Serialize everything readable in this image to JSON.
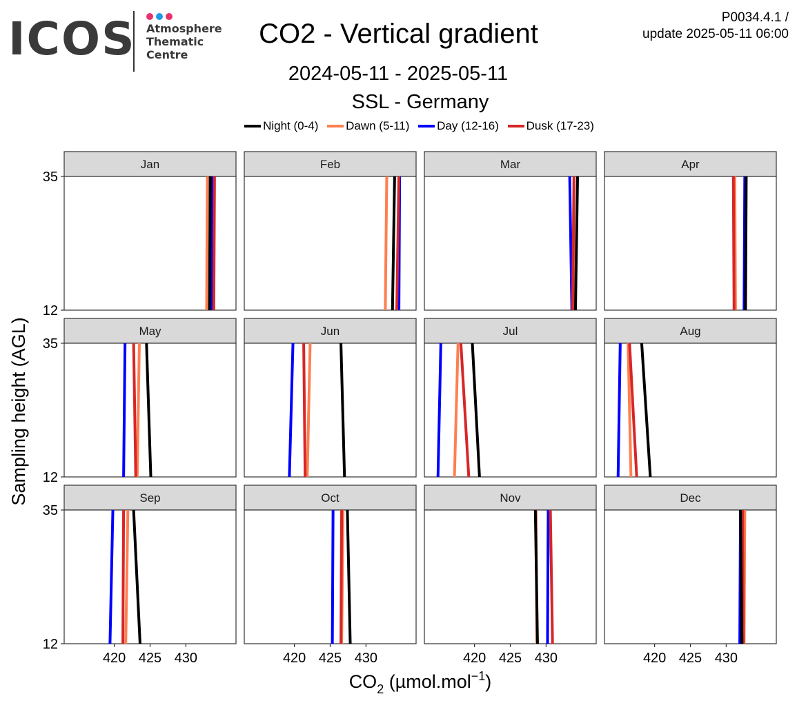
{
  "logo": {
    "wordmark": "ICOS",
    "line1": "Atmosphere",
    "line2": "Thematic",
    "line3": "Centre",
    "dot_colors": [
      "#e7336b",
      "#1e9be6",
      "#e7336b"
    ]
  },
  "header": {
    "title": "CO2 - Vertical gradient",
    "period": "2024-05-11 - 2025-05-11",
    "station": "SSL - Germany",
    "product_id": "P0034.4.1 /",
    "update": "update  2025-05-11 06:00"
  },
  "chart_data": {
    "type": "line",
    "layout": "facet-grid 3 rows x 4 columns, one panel per month",
    "ylabel": "Sampling height (AGL)",
    "xlabel_main": "CO",
    "xlabel_sub": "2",
    "xlabel_unit_pre": " (µmol.mol",
    "xlabel_unit_sup": "−1",
    "xlabel_unit_post": ")",
    "heights": [
      12,
      35
    ],
    "xlim": [
      413,
      437
    ],
    "ylim": [
      12,
      35
    ],
    "xticks": [
      420,
      425,
      430
    ],
    "yticks": [
      12,
      35
    ],
    "grid": false,
    "legend_position": "top",
    "series": [
      {
        "name": "Night (0-4)",
        "color": "#000000"
      },
      {
        "name": "Dawn (5-11)",
        "color": "#ff7f50"
      },
      {
        "name": "Day (12-16)",
        "color": "#0000ff"
      },
      {
        "name": "Dusk (17-23)",
        "color": "#d62728"
      }
    ],
    "panels": [
      {
        "month": "Jan",
        "night": [
          433.3,
          433.4
        ],
        "dawn": [
          432.9,
          433.0
        ],
        "day": [
          433.6,
          433.7
        ],
        "dusk": [
          433.9,
          434.0
        ]
      },
      {
        "month": "Feb",
        "night": [
          433.7,
          434.0
        ],
        "dawn": [
          432.7,
          432.9
        ],
        "day": [
          434.6,
          434.7
        ],
        "dusk": [
          434.3,
          434.6
        ]
      },
      {
        "month": "Mar",
        "night": [
          434.1,
          434.4
        ],
        "dawn": [
          433.8,
          433.9
        ],
        "day": [
          433.6,
          433.3
        ],
        "dusk": [
          433.7,
          433.9
        ]
      },
      {
        "month": "Apr",
        "night": [
          432.7,
          432.8
        ],
        "dawn": [
          431.3,
          431.2
        ],
        "day": [
          432.5,
          432.6
        ],
        "dusk": [
          431.1,
          431.0
        ]
      },
      {
        "month": "May",
        "night": [
          425.1,
          424.5
        ],
        "dawn": [
          423.2,
          423.5
        ],
        "day": [
          421.3,
          421.5
        ],
        "dusk": [
          423.0,
          422.7
        ]
      },
      {
        "month": "Jun",
        "night": [
          427.0,
          426.5
        ],
        "dawn": [
          421.8,
          422.2
        ],
        "day": [
          419.3,
          419.8
        ],
        "dusk": [
          421.5,
          421.3
        ]
      },
      {
        "month": "Jul",
        "night": [
          420.7,
          419.7
        ],
        "dawn": [
          417.2,
          417.7
        ],
        "day": [
          414.9,
          415.3
        ],
        "dusk": [
          419.2,
          418.1
        ]
      },
      {
        "month": "Aug",
        "night": [
          419.4,
          418.2
        ],
        "dawn": [
          416.7,
          416.3
        ],
        "day": [
          414.9,
          415.2
        ],
        "dusk": [
          417.5,
          416.5
        ]
      },
      {
        "month": "Sep",
        "night": [
          423.6,
          422.7
        ],
        "dawn": [
          421.6,
          421.9
        ],
        "day": [
          419.4,
          419.8
        ],
        "dusk": [
          421.2,
          421.3
        ]
      },
      {
        "month": "Oct",
        "night": [
          427.8,
          427.4
        ],
        "dawn": [
          426.6,
          426.8
        ],
        "day": [
          425.3,
          425.4
        ],
        "dusk": [
          426.5,
          426.6
        ]
      },
      {
        "month": "Nov",
        "night": [
          428.8,
          428.5
        ],
        "dawn": [
          428.7,
          428.6
        ],
        "day": [
          430.2,
          430.3
        ],
        "dusk": [
          430.9,
          430.6
        ]
      },
      {
        "month": "Dec",
        "night": [
          432.2,
          432.0
        ],
        "dawn": [
          432.5,
          432.6
        ],
        "day": [
          431.9,
          432.0
        ],
        "dusk": [
          432.4,
          432.3
        ]
      }
    ]
  }
}
